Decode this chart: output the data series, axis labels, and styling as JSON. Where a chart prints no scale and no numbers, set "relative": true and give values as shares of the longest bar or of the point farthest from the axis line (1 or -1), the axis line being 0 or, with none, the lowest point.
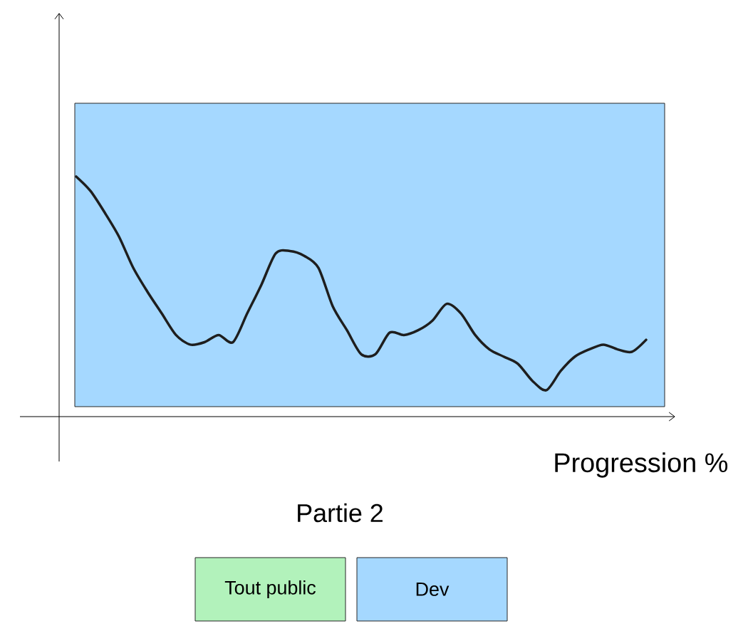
{
  "chart_data": {
    "type": "line",
    "relative": true,
    "title": "Partie 2",
    "xlabel": "Progression %",
    "categories": [
      null,
      null,
      null,
      null,
      null,
      null,
      null,
      null,
      null,
      null,
      null,
      null,
      null,
      null,
      null,
      null,
      null,
      null,
      null,
      null,
      null,
      null,
      null,
      null,
      null,
      null,
      null,
      null,
      null,
      null,
      null,
      null,
      null,
      null,
      null,
      null,
      null,
      null,
      null,
      null,
      null
    ],
    "series": [
      {
        "color": "#1e1e1e",
        "values": [
          1.0,
          0.94,
          0.85,
          0.75,
          0.62,
          0.52,
          0.43,
          0.34,
          0.3,
          0.31,
          0.34,
          0.31,
          0.43,
          0.55,
          0.68,
          0.69,
          0.67,
          0.62,
          0.46,
          0.36,
          0.26,
          0.26,
          0.35,
          0.34,
          0.36,
          0.4,
          0.47,
          0.43,
          0.34,
          0.28,
          0.25,
          0.22,
          0.15,
          0.11,
          0.19,
          0.25,
          0.28,
          0.3,
          0.28,
          0.27,
          0.32
        ]
      }
    ],
    "annotations": [
      "Tout public",
      "Dev"
    ]
  }
}
